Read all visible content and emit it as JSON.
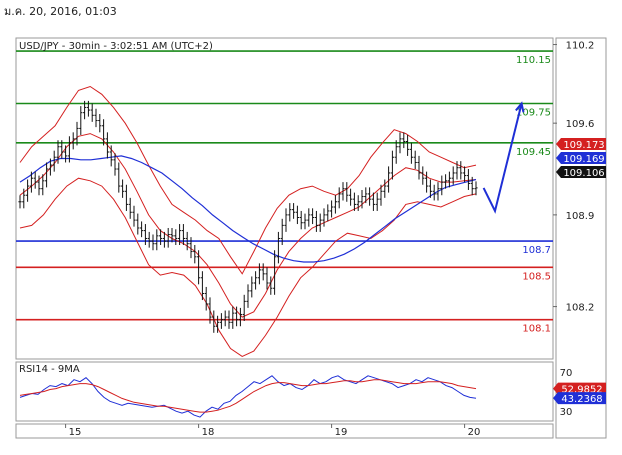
{
  "date_header": "ม.ค. 20, 2016, 01:03",
  "chart_data": [
    {
      "type": "candlestick",
      "title": "USD/JPY - 30min - 3:02:51 AM (UTC+2)",
      "ylim": [
        107.8,
        110.25
      ],
      "y_ticks": [
        {
          "value": 110.2,
          "label": "110.2"
        },
        {
          "value": 109.6,
          "label": "109.6"
        },
        {
          "value": 108.9,
          "label": "108.9"
        },
        {
          "value": 108.2,
          "label": "108.2"
        }
      ],
      "x_ticks": [
        {
          "index": 12,
          "label": "15"
        },
        {
          "index": 47,
          "label": "18"
        },
        {
          "index": 82,
          "label": "19"
        },
        {
          "index": 117,
          "label": "20"
        }
      ],
      "levels": [
        {
          "value": 110.15,
          "label": "110.15",
          "color": "#1a8a1a"
        },
        {
          "value": 109.75,
          "label": "109.75",
          "color": "#1a8a1a"
        },
        {
          "value": 109.45,
          "label": "109.45",
          "color": "#1a8a1a"
        },
        {
          "value": 108.7,
          "label": "108.7",
          "color": "#1f2fd6"
        },
        {
          "value": 108.5,
          "label": "108.5",
          "color": "#d42020"
        },
        {
          "value": 108.1,
          "label": "108.1",
          "color": "#d42020"
        }
      ],
      "price_tags": [
        {
          "value": 109.173,
          "label": "109.173",
          "bg": "#d42020",
          "fg": "#ffffff"
        },
        {
          "value": 109.169,
          "label": "109.169",
          "bg": "#1f2fd6",
          "fg": "#ffffff"
        },
        {
          "value": 109.106,
          "label": "109.106",
          "bg": "#111111",
          "fg": "#ffffff"
        }
      ],
      "forecast_arrow": {
        "color": "#1f2fd6",
        "points": [
          [
            122,
            109.106
          ],
          [
            125,
            108.93
          ],
          [
            132,
            109.75
          ]
        ]
      },
      "close_series": [
        109.0,
        109.05,
        109.12,
        109.18,
        109.15,
        109.1,
        109.16,
        109.25,
        109.28,
        109.34,
        109.42,
        109.38,
        109.35,
        109.45,
        109.48,
        109.56,
        109.68,
        109.72,
        109.7,
        109.66,
        109.62,
        109.58,
        109.48,
        109.38,
        109.32,
        109.25,
        109.12,
        109.08,
        108.98,
        108.92,
        108.86,
        108.8,
        108.78,
        108.72,
        108.7,
        108.68,
        108.74,
        108.72,
        108.7,
        108.75,
        108.74,
        108.72,
        108.78,
        108.72,
        108.68,
        108.62,
        108.58,
        108.42,
        108.3,
        108.22,
        108.12,
        108.05,
        108.08,
        108.1,
        108.12,
        108.08,
        108.15,
        108.1,
        108.14,
        108.24,
        108.32,
        108.38,
        108.42,
        108.48,
        108.45,
        108.38,
        108.34,
        108.58,
        108.72,
        108.82,
        108.9,
        108.94,
        108.92,
        108.88,
        108.84,
        108.86,
        108.9,
        108.88,
        108.82,
        108.86,
        108.9,
        108.93,
        108.96,
        109.0,
        109.06,
        109.1,
        109.05,
        109.02,
        108.98,
        109.0,
        109.04,
        109.06,
        109.02,
        108.98,
        109.02,
        109.08,
        109.12,
        109.22,
        109.34,
        109.42,
        109.48,
        109.46,
        109.4,
        109.34,
        109.3,
        109.22,
        109.18,
        109.12,
        109.08,
        109.06,
        109.1,
        109.15,
        109.16,
        109.18,
        109.22,
        109.26,
        109.22,
        109.2,
        109.14,
        109.1,
        109.106
      ],
      "ma_series": [
        109.15,
        109.2,
        109.26,
        109.31,
        109.33,
        109.33,
        109.32,
        109.32,
        109.33,
        109.34,
        109.35,
        109.33,
        109.3,
        109.26,
        109.22,
        109.16,
        109.1,
        109.03,
        108.97,
        108.9,
        108.84,
        108.78,
        108.73,
        108.68,
        108.64,
        108.6,
        108.57,
        108.55,
        108.54,
        108.54,
        108.55,
        108.57,
        108.6,
        108.64,
        108.69,
        108.75,
        108.81,
        108.87,
        108.92,
        108.97,
        109.02,
        109.07,
        109.11,
        109.13,
        109.15,
        109.17
      ],
      "bands": {
        "upper": [
          109.3,
          109.42,
          109.5,
          109.58,
          109.72,
          109.85,
          109.88,
          109.82,
          109.72,
          109.6,
          109.45,
          109.28,
          109.12,
          108.98,
          108.92,
          108.86,
          108.78,
          108.72,
          108.58,
          108.45,
          108.62,
          108.8,
          108.95,
          109.05,
          109.1,
          109.12,
          109.08,
          109.05,
          109.1,
          109.2,
          109.34,
          109.45,
          109.55,
          109.52,
          109.46,
          109.38,
          109.34,
          109.3,
          109.26,
          109.28
        ],
        "mid": [
          109.05,
          109.12,
          109.2,
          109.3,
          109.42,
          109.5,
          109.52,
          109.48,
          109.38,
          109.25,
          109.08,
          108.9,
          108.78,
          108.72,
          108.68,
          108.62,
          108.52,
          108.38,
          108.22,
          108.12,
          108.16,
          108.3,
          108.48,
          108.62,
          108.72,
          108.8,
          108.84,
          108.88,
          108.92,
          108.96,
          109.04,
          109.12,
          109.2,
          109.26,
          109.24,
          109.18,
          109.15,
          109.15,
          109.16,
          109.17
        ],
        "lower": [
          108.8,
          108.82,
          108.9,
          109.02,
          109.12,
          109.18,
          109.16,
          109.12,
          109.02,
          108.88,
          108.7,
          108.52,
          108.44,
          108.46,
          108.44,
          108.36,
          108.22,
          108.02,
          107.88,
          107.82,
          107.86,
          107.98,
          108.12,
          108.28,
          108.42,
          108.5,
          108.6,
          108.7,
          108.76,
          108.74,
          108.72,
          108.78,
          108.86,
          108.98,
          109.0,
          108.98,
          108.96,
          109.0,
          109.04,
          109.06
        ]
      }
    },
    {
      "type": "line",
      "title": "RSI14 - 9MA",
      "ylim": [
        20,
        80
      ],
      "y_ticks": [
        {
          "value": 70,
          "label": "70"
        },
        {
          "value": 30,
          "label": "30"
        }
      ],
      "series": [
        {
          "name": "RSI14",
          "color": "#1f2fd6",
          "values": [
            44,
            46,
            48,
            47,
            52,
            56,
            55,
            58,
            56,
            62,
            60,
            64,
            58,
            50,
            44,
            40,
            38,
            36,
            38,
            37,
            36,
            35,
            34,
            35,
            36,
            33,
            30,
            28,
            30,
            26,
            24,
            30,
            34,
            32,
            38,
            40,
            46,
            50,
            55,
            60,
            58,
            62,
            66,
            60,
            56,
            58,
            54,
            52,
            56,
            62,
            58,
            60,
            64,
            66,
            62,
            60,
            58,
            62,
            66,
            64,
            62,
            60,
            58,
            54,
            56,
            58,
            62,
            60,
            64,
            62,
            60,
            56,
            54,
            50,
            46,
            44,
            43.2368
          ]
        },
        {
          "name": "9MA",
          "color": "#d42020",
          "values": [
            46,
            47,
            48,
            49,
            50,
            52,
            53,
            55,
            56,
            57,
            58,
            58,
            57,
            55,
            52,
            49,
            46,
            43,
            41,
            39,
            38,
            37,
            36,
            35,
            35,
            34,
            33,
            32,
            31,
            30,
            29,
            29,
            30,
            31,
            33,
            35,
            38,
            42,
            46,
            50,
            53,
            56,
            58,
            59,
            59,
            58,
            57,
            56,
            56,
            57,
            58,
            58,
            59,
            60,
            61,
            61,
            60,
            60,
            61,
            62,
            62,
            61,
            60,
            59,
            58,
            58,
            58,
            59,
            60,
            60,
            60,
            59,
            58,
            56,
            55,
            54,
            52.9852
          ]
        }
      ],
      "value_tags": [
        {
          "value": 52.9852,
          "label": "52.9852",
          "bg": "#d42020",
          "fg": "#ffffff"
        },
        {
          "value": 43.2368,
          "label": "43.2368",
          "bg": "#1f2fd6",
          "fg": "#ffffff"
        }
      ]
    }
  ]
}
